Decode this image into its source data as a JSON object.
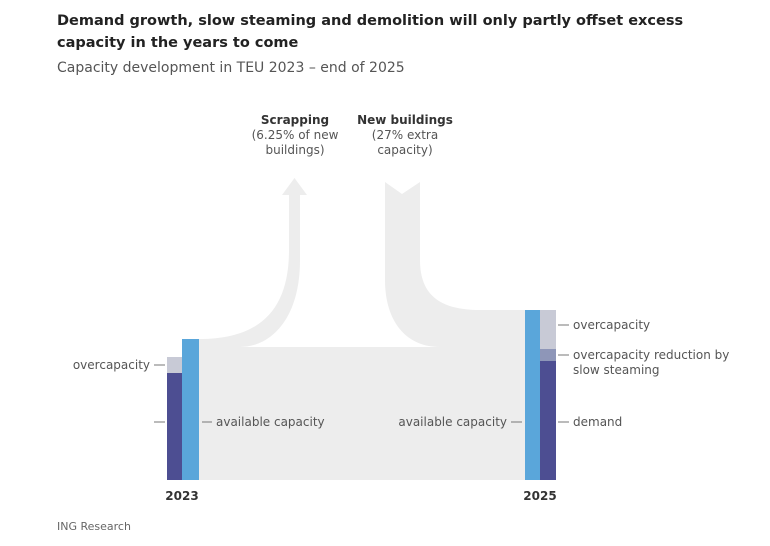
{
  "title": "Demand growth, slow steaming and demolition will only partly offset excess capacity in the years to come",
  "subtitle": "Capacity development in TEU 2023 – end of 2025",
  "source": "ING Research",
  "diagram": {
    "scrapping": {
      "label": "Scrapping",
      "note_line1": "(6.25% of new",
      "note_line2": "buildings)"
    },
    "new_buildings": {
      "label": "New buildings",
      "note_line1": "(27% extra",
      "note_line2": "capacity)"
    },
    "left": {
      "year": "2023",
      "overcapacity": "overcapacity",
      "available": "available capacity"
    },
    "right": {
      "year": "2025",
      "available": "available capacity",
      "overcapacity": "overcapacity",
      "reduction_line1": "overcapacity reduction by",
      "reduction_line2": "slow steaming",
      "demand": "demand"
    },
    "colors": {
      "demand": "#4d4e92",
      "available": "#5aa6da",
      "overcapacity": "#c8cad6",
      "reduction": "#8e96b8",
      "flow": "#ededed"
    }
  }
}
